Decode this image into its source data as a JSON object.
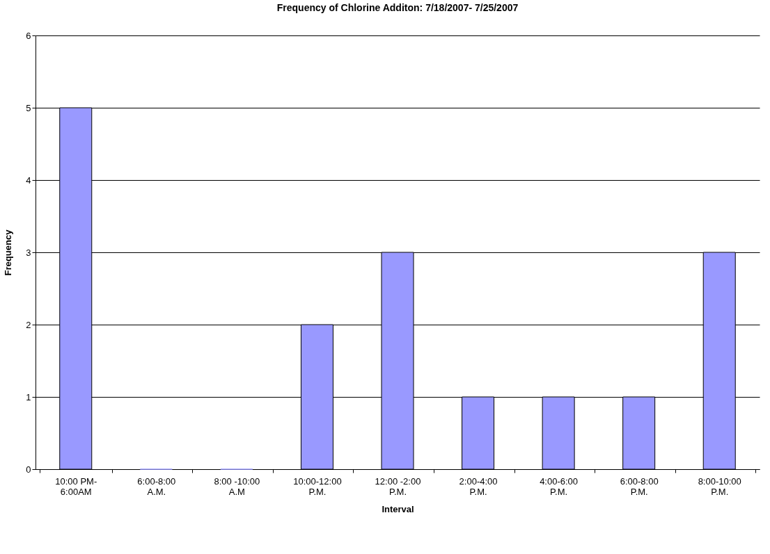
{
  "chart_data": {
    "type": "bar",
    "title": "Frequency of Chlorine Additon: 7/18/2007- 7/25/2007",
    "xlabel": "Interval",
    "ylabel": "Frequency",
    "categories": [
      "10:00 PM-\n6:00AM",
      "6:00-8:00\nA.M.",
      "8:00 -10:00\nA.M",
      "10:00-12:00\nP.M.",
      "12:00 -2:00\nP.M.",
      "2:00-4:00\nP.M.",
      "4:00-6:00\nP.M.",
      "6:00-8:00\nP.M.",
      "8:00-10:00\nP.M."
    ],
    "values": [
      5,
      0,
      0,
      2,
      3,
      1,
      1,
      1,
      3
    ],
    "color": "#9999ff",
    "ylim": [
      0,
      6
    ],
    "yticks": [
      0,
      1,
      2,
      3,
      4,
      5,
      6
    ],
    "grid": "y"
  }
}
